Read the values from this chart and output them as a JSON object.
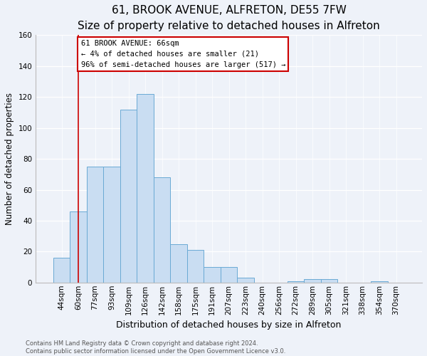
{
  "title1": "61, BROOK AVENUE, ALFRETON, DE55 7FW",
  "title2": "Size of property relative to detached houses in Alfreton",
  "xlabel": "Distribution of detached houses by size in Alfreton",
  "ylabel": "Number of detached properties",
  "categories": [
    "44sqm",
    "60sqm",
    "77sqm",
    "93sqm",
    "109sqm",
    "126sqm",
    "142sqm",
    "158sqm",
    "175sqm",
    "191sqm",
    "207sqm",
    "223sqm",
    "240sqm",
    "256sqm",
    "272sqm",
    "289sqm",
    "305sqm",
    "321sqm",
    "338sqm",
    "354sqm",
    "370sqm"
  ],
  "values": [
    16,
    46,
    75,
    75,
    112,
    122,
    68,
    25,
    21,
    10,
    10,
    3,
    0,
    0,
    1,
    2,
    2,
    0,
    0,
    1,
    0
  ],
  "bar_color": "#c9ddf2",
  "bar_edge_color": "#6aaad4",
  "annotation_text_line1": "61 BROOK AVENUE: 66sqm",
  "annotation_text_line2": "← 4% of detached houses are smaller (21)",
  "annotation_text_line3": "96% of semi-detached houses are larger (517) →",
  "annotation_box_color": "#ffffff",
  "annotation_box_edge": "#cc0000",
  "vline_color": "#cc0000",
  "vline_x": 1.0,
  "ylim": [
    0,
    160
  ],
  "yticks": [
    0,
    20,
    40,
    60,
    80,
    100,
    120,
    140,
    160
  ],
  "footer1": "Contains HM Land Registry data © Crown copyright and database right 2024.",
  "footer2": "Contains public sector information licensed under the Open Government Licence v3.0.",
  "bg_color": "#eef2f9",
  "plot_bg_color": "#eef2f9",
  "title1_fontsize": 11,
  "title2_fontsize": 9.5,
  "ylabel_fontsize": 8.5,
  "xlabel_fontsize": 9,
  "tick_fontsize": 7.5,
  "ann_fontsize": 7.5,
  "footer_fontsize": 6
}
